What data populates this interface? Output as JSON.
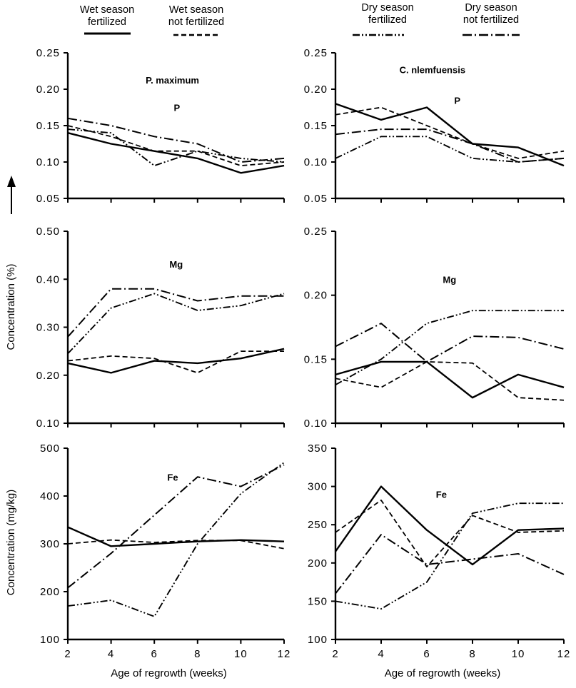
{
  "chart_data": [
    {
      "type": "line",
      "title": "P. maximum",
      "label": "P",
      "xlabel": "",
      "ylabel": "",
      "x": [
        2,
        4,
        6,
        8,
        10,
        12
      ],
      "xticks": [
        "2",
        "4",
        "6",
        "8",
        "10",
        "12"
      ],
      "ylim": [
        0.05,
        0.25
      ],
      "yticks": [
        "0.05",
        "0.10",
        "0.15",
        "0.20",
        "0.25"
      ],
      "series": [
        {
          "name": "Wet season fertilized",
          "values": [
            0.14,
            0.125,
            0.115,
            0.105,
            0.085,
            0.095
          ]
        },
        {
          "name": "Wet season not fertilized",
          "values": [
            0.15,
            0.135,
            0.115,
            0.115,
            0.095,
            0.1
          ]
        },
        {
          "name": "Dry season fertilized",
          "values": [
            0.145,
            0.14,
            0.095,
            0.115,
            0.105,
            0.1
          ]
        },
        {
          "name": "Dry season not fertilized",
          "values": [
            0.16,
            0.15,
            0.135,
            0.125,
            0.1,
            0.105
          ]
        }
      ]
    },
    {
      "type": "line",
      "title": "C. nlemfuensis",
      "label": "P",
      "xlabel": "",
      "ylabel": "",
      "x": [
        2,
        4,
        6,
        8,
        10,
        12
      ],
      "xticks": [
        "2",
        "4",
        "6",
        "8",
        "10",
        "12"
      ],
      "ylim": [
        0.05,
        0.25
      ],
      "yticks": [
        "0.05",
        "0.10",
        "0.15",
        "0.20",
        "0.25"
      ],
      "series": [
        {
          "name": "Wet season fertilized",
          "values": [
            0.18,
            0.158,
            0.175,
            0.125,
            0.12,
            0.095
          ]
        },
        {
          "name": "Wet season not fertilized",
          "values": [
            0.165,
            0.175,
            0.15,
            0.125,
            0.105,
            0.115
          ]
        },
        {
          "name": "Dry season fertilized",
          "values": [
            0.105,
            0.135,
            0.135,
            0.105,
            0.1,
            0.105
          ]
        },
        {
          "name": "Dry season not fertilized",
          "values": [
            0.138,
            0.145,
            0.145,
            0.125,
            0.1,
            0.105
          ]
        }
      ]
    },
    {
      "type": "line",
      "title": "",
      "label": "Mg",
      "xlabel": "",
      "ylabel": "",
      "x": [
        2,
        4,
        6,
        8,
        10,
        12
      ],
      "xticks": [
        "2",
        "4",
        "6",
        "8",
        "10",
        "12"
      ],
      "ylim": [
        0.1,
        0.5
      ],
      "yticks": [
        "0.10",
        "0.20",
        "0.30",
        "0.40",
        "0.50"
      ],
      "series": [
        {
          "name": "Wet season fertilized",
          "values": [
            0.225,
            0.205,
            0.23,
            0.225,
            0.235,
            0.255
          ]
        },
        {
          "name": "Wet season not fertilized",
          "values": [
            0.23,
            0.24,
            0.235,
            0.205,
            0.25,
            0.25
          ]
        },
        {
          "name": "Dry season fertilized",
          "values": [
            0.245,
            0.34,
            0.37,
            0.335,
            0.345,
            0.37
          ]
        },
        {
          "name": "Dry season not fertilized",
          "values": [
            0.28,
            0.38,
            0.38,
            0.355,
            0.365,
            0.365
          ]
        }
      ]
    },
    {
      "type": "line",
      "title": "",
      "label": "Mg",
      "xlabel": "",
      "ylabel": "",
      "x": [
        2,
        4,
        6,
        8,
        10,
        12
      ],
      "xticks": [
        "2",
        "4",
        "6",
        "8",
        "10",
        "12"
      ],
      "ylim": [
        0.1,
        0.25
      ],
      "yticks": [
        "0.10",
        "0.15",
        "0.20",
        "0.25"
      ],
      "series": [
        {
          "name": "Wet season fertilized",
          "values": [
            0.138,
            0.148,
            0.148,
            0.12,
            0.138,
            0.128
          ]
        },
        {
          "name": "Wet season not fertilized",
          "values": [
            0.135,
            0.128,
            0.148,
            0.147,
            0.12,
            0.118
          ]
        },
        {
          "name": "Dry season fertilized",
          "values": [
            0.13,
            0.15,
            0.178,
            0.188,
            0.188,
            0.188
          ]
        },
        {
          "name": "Dry season not fertilized",
          "values": [
            0.16,
            0.178,
            0.148,
            0.168,
            0.167,
            0.158
          ]
        }
      ]
    },
    {
      "type": "line",
      "title": "",
      "label": "Fe",
      "xlabel": "Age of regrowth (weeks)",
      "ylabel": "",
      "x": [
        2,
        4,
        6,
        8,
        10,
        12
      ],
      "xticks": [
        "2",
        "4",
        "6",
        "8",
        "10",
        "12"
      ],
      "ylim": [
        100,
        500
      ],
      "yticks": [
        "100",
        "200",
        "300",
        "400",
        "500"
      ],
      "series": [
        {
          "name": "Wet season fertilized",
          "values": [
            335,
            295,
            300,
            305,
            308,
            305
          ]
        },
        {
          "name": "Wet season not fertilized",
          "values": [
            300,
            308,
            303,
            307,
            307,
            290
          ]
        },
        {
          "name": "Dry season fertilized",
          "values": [
            170,
            182,
            148,
            300,
            405,
            470
          ]
        },
        {
          "name": "Dry season not fertilized",
          "values": [
            208,
            280,
            360,
            440,
            420,
            465
          ]
        }
      ]
    },
    {
      "type": "line",
      "title": "",
      "label": "Fe",
      "xlabel": "Age of regrowth (weeks)",
      "ylabel": "",
      "x": [
        2,
        4,
        6,
        8,
        10,
        12
      ],
      "xticks": [
        "2",
        "4",
        "6",
        "8",
        "10",
        "12"
      ],
      "ylim": [
        100,
        350
      ],
      "yticks": [
        "100",
        "150",
        "200",
        "250",
        "300",
        "350"
      ],
      "series": [
        {
          "name": "Wet season fertilized",
          "values": [
            215,
            300,
            243,
            198,
            243,
            245
          ]
        },
        {
          "name": "Wet season not fertilized",
          "values": [
            240,
            282,
            195,
            262,
            240,
            242
          ]
        },
        {
          "name": "Dry season fertilized",
          "values": [
            150,
            140,
            175,
            265,
            278,
            278
          ]
        },
        {
          "name": "Dry season not fertilized",
          "values": [
            160,
            237,
            198,
            205,
            212,
            185
          ]
        }
      ]
    }
  ],
  "legend": [
    {
      "label": "Wet season\nfertilized",
      "style": "solid"
    },
    {
      "label": "Wet season\nnot fertilized",
      "style": "dashed"
    },
    {
      "label": "Dry season\nfertilized",
      "style": "dashdotdot"
    },
    {
      "label": "Dry season\nnot fertilized",
      "style": "dashdot"
    }
  ],
  "ylabels": {
    "top": "Concentration (%)",
    "bottom": "Concentration (mg/kg)"
  }
}
